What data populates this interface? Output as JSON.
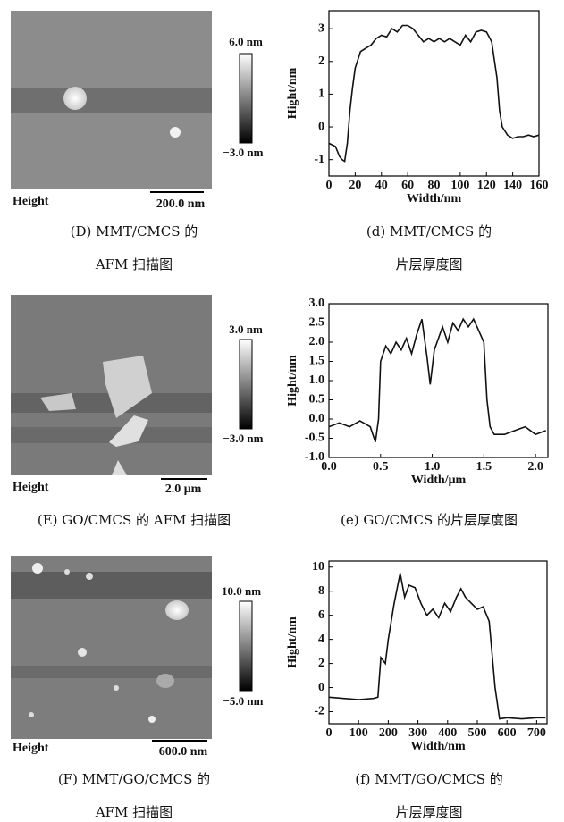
{
  "afm_panels": [
    {
      "colorbar_max": "6.0 nm",
      "colorbar_min": "−3.0 nm",
      "channel": "Height",
      "scale_bar": "200.0 nm",
      "caption": [
        "(D) MMT/CMCS 的",
        "AFM 扫描图"
      ]
    },
    {
      "colorbar_max": "3.0 nm",
      "colorbar_min": "−3.0 nm",
      "channel": "Height",
      "scale_bar": "2.0 μm",
      "caption": [
        "(E) GO/CMCS 的 AFM 扫描图"
      ]
    },
    {
      "colorbar_max": "10.0 nm",
      "colorbar_min": "−5.0 nm",
      "channel": "Height",
      "scale_bar": "600.0 nm",
      "caption": [
        "(F) MMT/GO/CMCS 的",
        "AFM 扫描图"
      ]
    }
  ],
  "chart_data": [
    {
      "type": "line",
      "xlabel": "Width/nm",
      "ylabel": "Hight/nm",
      "color": "#111111",
      "caption": [
        "(d) MMT/CMCS 的",
        "片层厚度图"
      ],
      "x": [
        0,
        5,
        8,
        10,
        12,
        14,
        16,
        18,
        20,
        24,
        28,
        32,
        36,
        40,
        44,
        48,
        52,
        56,
        60,
        64,
        68,
        72,
        76,
        80,
        84,
        88,
        92,
        96,
        100,
        104,
        108,
        112,
        116,
        120,
        124,
        128,
        130,
        132,
        136,
        140,
        144,
        148,
        152,
        156,
        160
      ],
      "values": [
        -0.5,
        -0.6,
        -0.9,
        -1.0,
        -1.05,
        -0.5,
        0.5,
        1.2,
        1.8,
        2.3,
        2.4,
        2.5,
        2.7,
        2.8,
        2.75,
        3.0,
        2.9,
        3.1,
        3.1,
        3.0,
        2.8,
        2.6,
        2.7,
        2.6,
        2.7,
        2.6,
        2.7,
        2.6,
        2.5,
        2.8,
        2.6,
        2.9,
        2.95,
        2.9,
        2.6,
        1.5,
        0.5,
        0.0,
        -0.25,
        -0.35,
        -0.3,
        -0.3,
        -0.25,
        -0.3,
        -0.25
      ],
      "xlim": [
        0,
        160
      ],
      "ylim": [
        -1.5,
        3.55
      ],
      "xticks": [
        0,
        20,
        40,
        60,
        80,
        100,
        120,
        140,
        160
      ],
      "yticks": [
        -1,
        0,
        1,
        2,
        3
      ]
    },
    {
      "type": "line",
      "xlabel": "Width/μm",
      "ylabel": "Hight/nm",
      "color": "#111111",
      "caption": [
        "(e) GO/CMCS 的片层厚度图"
      ],
      "x": [
        0,
        0.1,
        0.2,
        0.3,
        0.4,
        0.45,
        0.48,
        0.5,
        0.55,
        0.6,
        0.65,
        0.7,
        0.75,
        0.8,
        0.85,
        0.9,
        0.95,
        0.98,
        1.02,
        1.1,
        1.15,
        1.2,
        1.25,
        1.3,
        1.35,
        1.4,
        1.45,
        1.5,
        1.53,
        1.56,
        1.6,
        1.7,
        1.8,
        1.9,
        2.0,
        2.1
      ],
      "values": [
        -0.2,
        -0.1,
        -0.2,
        -0.05,
        -0.2,
        -0.6,
        0.0,
        1.5,
        1.9,
        1.7,
        2.0,
        1.8,
        2.1,
        1.7,
        2.2,
        2.6,
        1.6,
        0.9,
        1.8,
        2.4,
        2.0,
        2.5,
        2.3,
        2.6,
        2.4,
        2.6,
        2.3,
        2.0,
        0.5,
        -0.2,
        -0.4,
        -0.4,
        -0.3,
        -0.2,
        -0.4,
        -0.3
      ],
      "xlim": [
        0,
        2.12
      ],
      "ylim": [
        -1,
        3
      ],
      "xticks": [
        {
          "value": 0,
          "label": "0.0"
        },
        0.5,
        {
          "value": 1,
          "label": "1.0"
        },
        1.5,
        {
          "value": 2,
          "label": "2.0"
        }
      ],
      "yticks": [
        {
          "value": -1,
          "label": "-1.0"
        },
        -0.5,
        {
          "value": 0,
          "label": "0.0"
        },
        0.5,
        {
          "value": 1,
          "label": "1.0"
        },
        1.5,
        {
          "value": 2,
          "label": "2.0"
        },
        2.5,
        {
          "value": 3,
          "label": "3.0"
        }
      ]
    },
    {
      "type": "line",
      "xlabel": "Width/nm",
      "ylabel": "Hight/nm",
      "color": "#111111",
      "caption": [
        "(f) MMT/GO/CMCS 的",
        "片层厚度图"
      ],
      "x": [
        0,
        50,
        100,
        150,
        165,
        175,
        190,
        200,
        220,
        240,
        255,
        270,
        290,
        310,
        330,
        350,
        370,
        390,
        410,
        430,
        445,
        460,
        480,
        500,
        520,
        540,
        560,
        575,
        600,
        650,
        700,
        730
      ],
      "values": [
        -0.8,
        -0.9,
        -1.0,
        -0.9,
        -0.8,
        2.5,
        2.0,
        4.0,
        7.0,
        9.5,
        7.5,
        8.5,
        8.3,
        7.0,
        6.0,
        6.5,
        5.8,
        7.0,
        6.3,
        7.5,
        8.2,
        7.5,
        7.0,
        6.5,
        6.7,
        5.5,
        0.0,
        -2.6,
        -2.5,
        -2.6,
        -2.5,
        -2.5
      ],
      "xlim": [
        0,
        735
      ],
      "ylim": [
        -3,
        10.5
      ],
      "xticks": [
        0,
        100,
        200,
        300,
        400,
        500,
        600,
        700
      ],
      "yticks": [
        -2,
        0,
        2,
        4,
        6,
        8,
        10
      ]
    }
  ]
}
